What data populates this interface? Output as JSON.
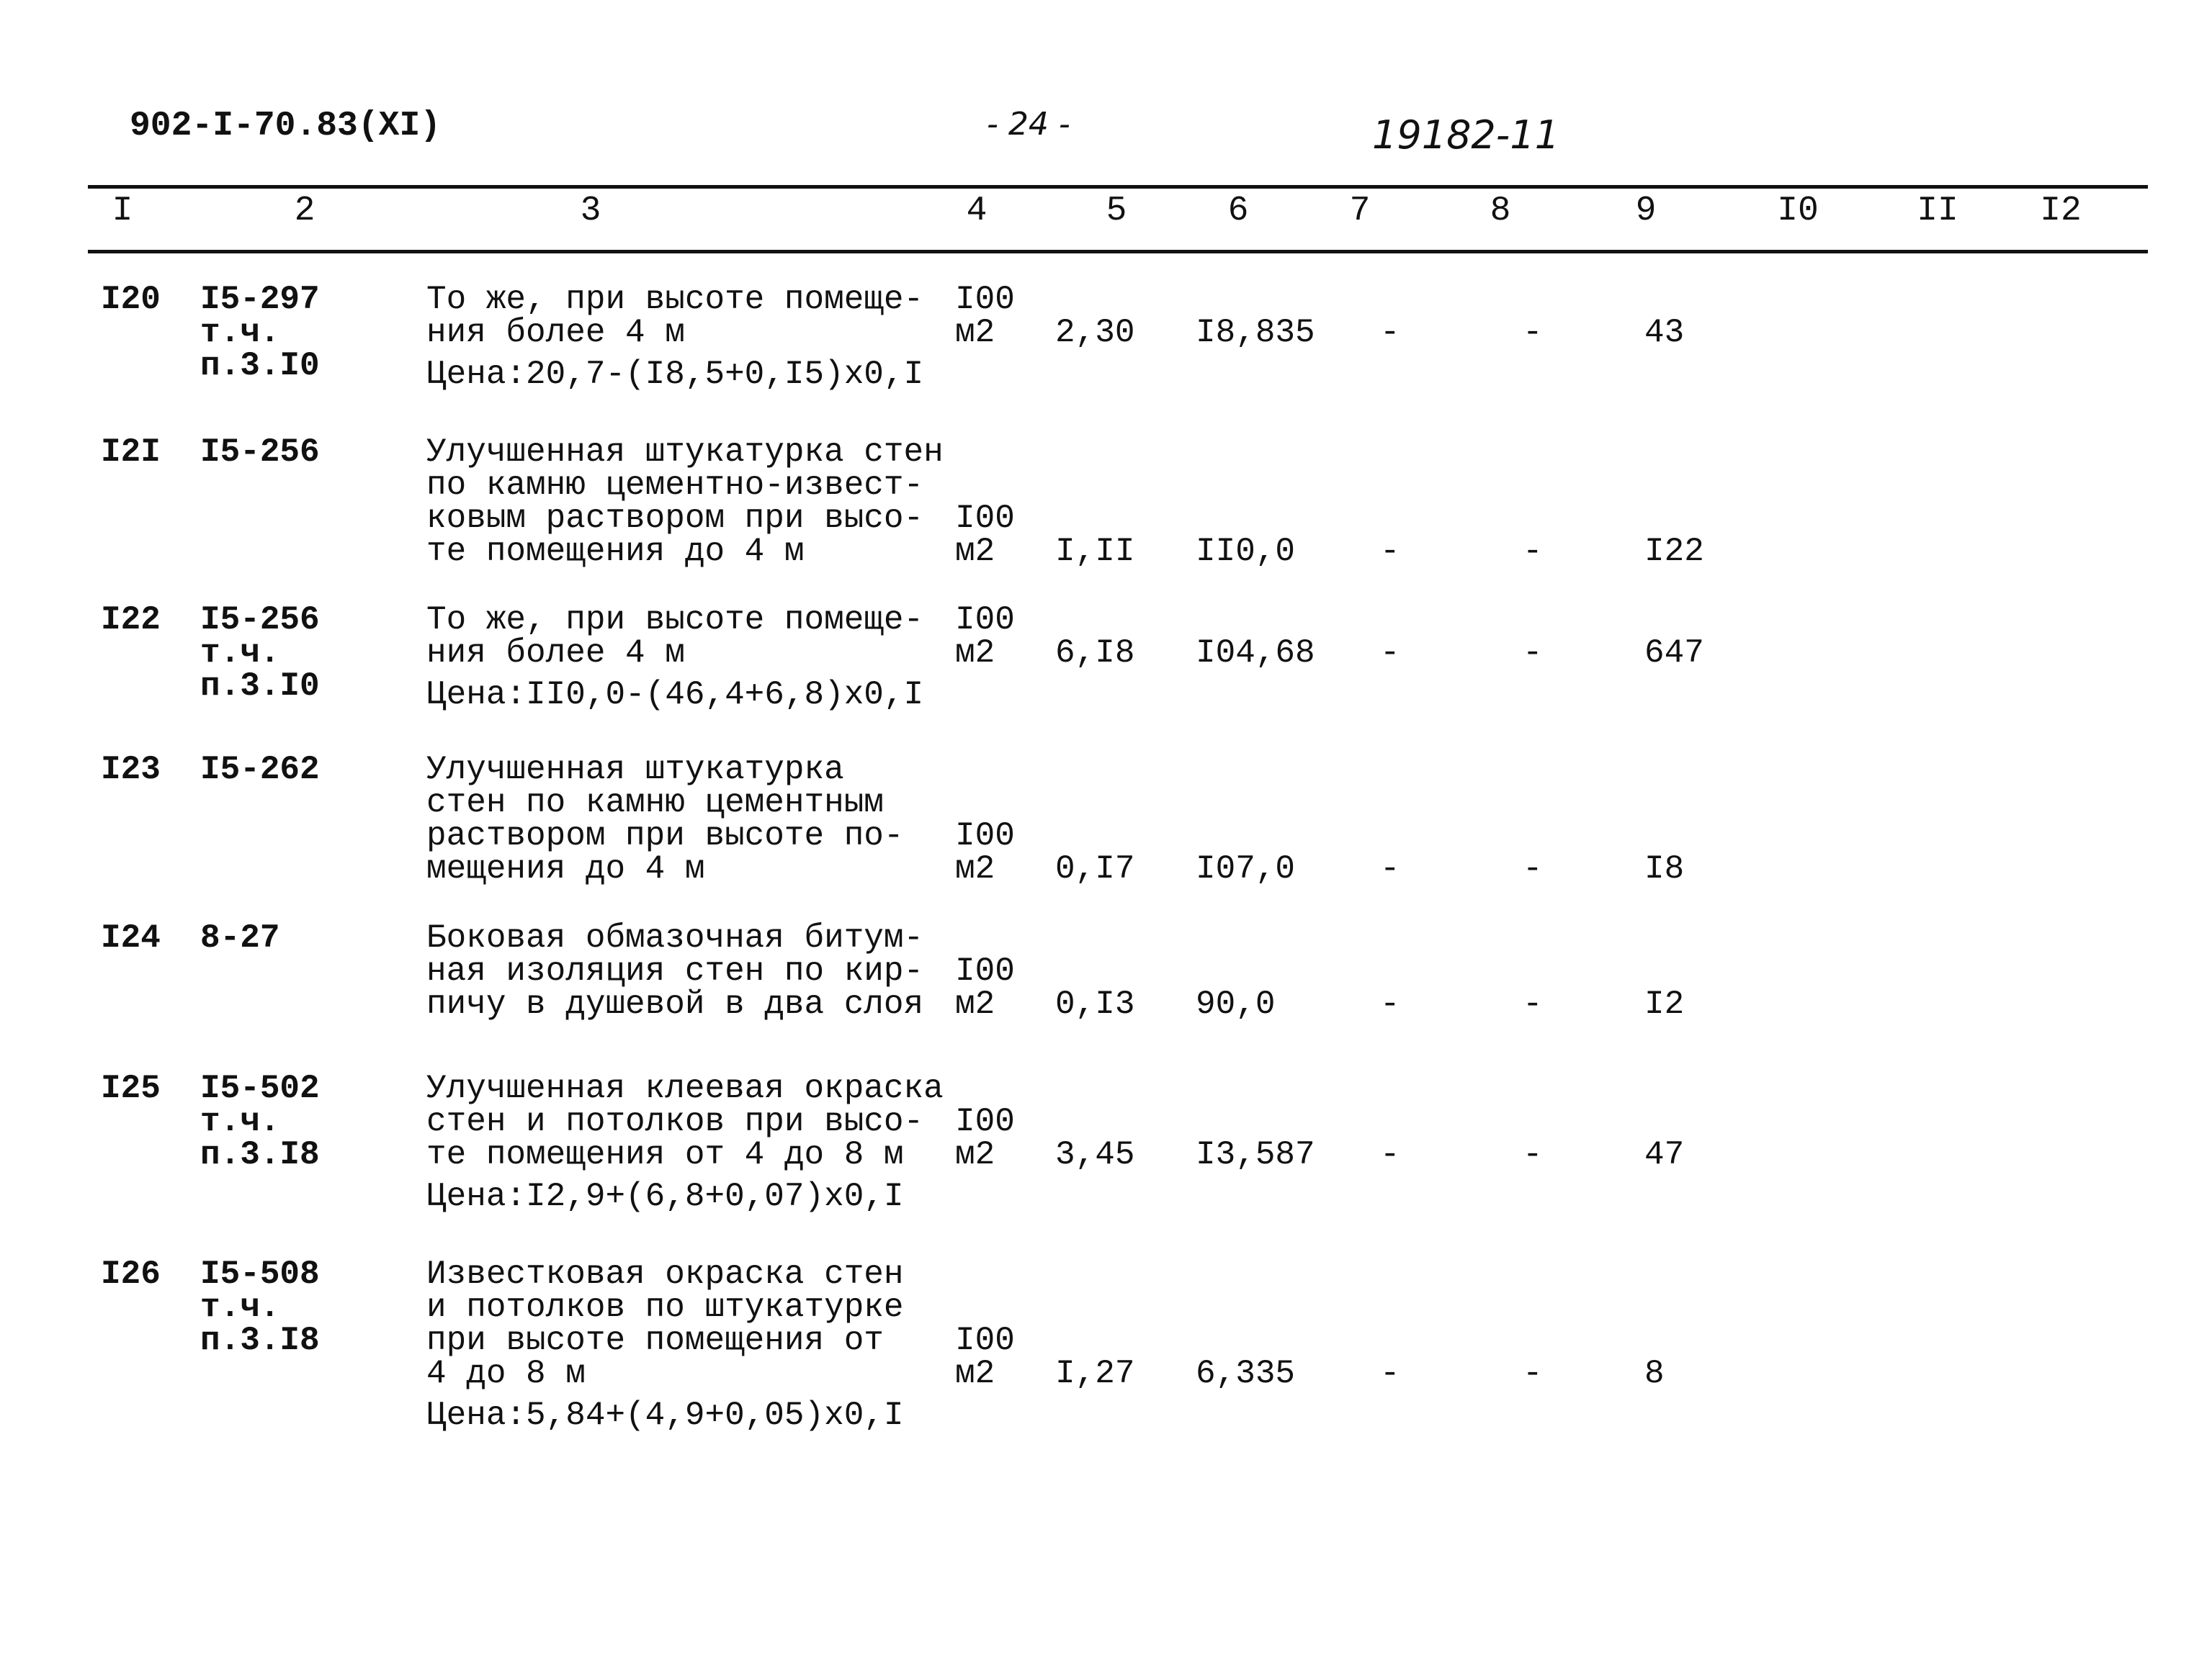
{
  "header": {
    "doc_code": "902-I-70.83(XI)",
    "page_number": "- 24 -",
    "handwritten_number": "19182-11"
  },
  "columns": [
    "I",
    "2",
    "3",
    "4",
    "5",
    "6",
    "7",
    "8",
    "9",
    "I0",
    "II",
    "I2"
  ],
  "rows": [
    {
      "num": "I20",
      "code": [
        "I5-297",
        "т.ч.",
        "п.3.I0"
      ],
      "desc": [
        "То же, при высоте помеще-",
        "ния более 4 м"
      ],
      "price": "Цена:20,7-(I8,5+0,I5)x0,I",
      "unit": [
        "I00",
        "м2"
      ],
      "c5": "2,30",
      "c6": "I8,835",
      "c7": "-",
      "c8": "-",
      "c9": "43"
    },
    {
      "num": "I2I",
      "code": [
        "I5-256"
      ],
      "desc": [
        "Улучшенная штукатурка стен",
        "по камню цементно-извест-",
        "ковым раствором при высо-",
        "те помещения до 4 м"
      ],
      "price": "",
      "unit": [
        "I00",
        "м2"
      ],
      "c5": "I,II",
      "c6": "II0,0",
      "c7": "-",
      "c8": "-",
      "c9": "I22"
    },
    {
      "num": "I22",
      "code": [
        "I5-256",
        "т.ч.",
        "п.3.I0"
      ],
      "desc": [
        "То же, при высоте помеще-",
        "ния более 4 м"
      ],
      "price": "Цена:II0,0-(46,4+6,8)x0,I",
      "unit": [
        "I00",
        "м2"
      ],
      "c5": "6,I8",
      "c6": "I04,68",
      "c7": "-",
      "c8": "-",
      "c9": "647"
    },
    {
      "num": "I23",
      "code": [
        "I5-262"
      ],
      "desc": [
        "Улучшенная штукатурка",
        "стен по камню цементным",
        "раствором при высоте по-",
        "мещения до 4 м"
      ],
      "price": "",
      "unit": [
        "I00",
        "м2"
      ],
      "c5": "0,I7",
      "c6": "I07,0",
      "c7": "-",
      "c8": "-",
      "c9": "I8"
    },
    {
      "num": "I24",
      "code": [
        "8-27"
      ],
      "desc": [
        "Боковая обмазочная битум-",
        "ная изоляция стен по кир-",
        "пичу в душевой в два слоя"
      ],
      "price": "",
      "unit": [
        "I00",
        "м2"
      ],
      "c5": "0,I3",
      "c6": "90,0",
      "c7": "-",
      "c8": "-",
      "c9": "I2"
    },
    {
      "num": "I25",
      "code": [
        "I5-502",
        "т.ч.",
        "п.3.I8"
      ],
      "desc": [
        "Улучшенная клеевая окраска",
        "стен и потолков при высо-",
        "те помещения от 4 до 8 м"
      ],
      "price": "Цена:I2,9+(6,8+0,07)x0,I",
      "unit": [
        "I00",
        "м2"
      ],
      "c5": "3,45",
      "c6": "I3,587",
      "c7": "-",
      "c8": "-",
      "c9": "47"
    },
    {
      "num": "I26",
      "code": [
        "I5-508",
        "т.ч.",
        "п.3.I8"
      ],
      "desc": [
        "Известковая окраска стен",
        "и потолков по штукатурке",
        "при высоте помещения от",
        "4 до 8 м"
      ],
      "price": "Цена:5,84+(4,9+0,05)x0,I",
      "unit": [
        "I00",
        "м2"
      ],
      "c5": "I,27",
      "c6": "6,335",
      "c7": "-",
      "c8": "-",
      "c9": "8"
    }
  ]
}
